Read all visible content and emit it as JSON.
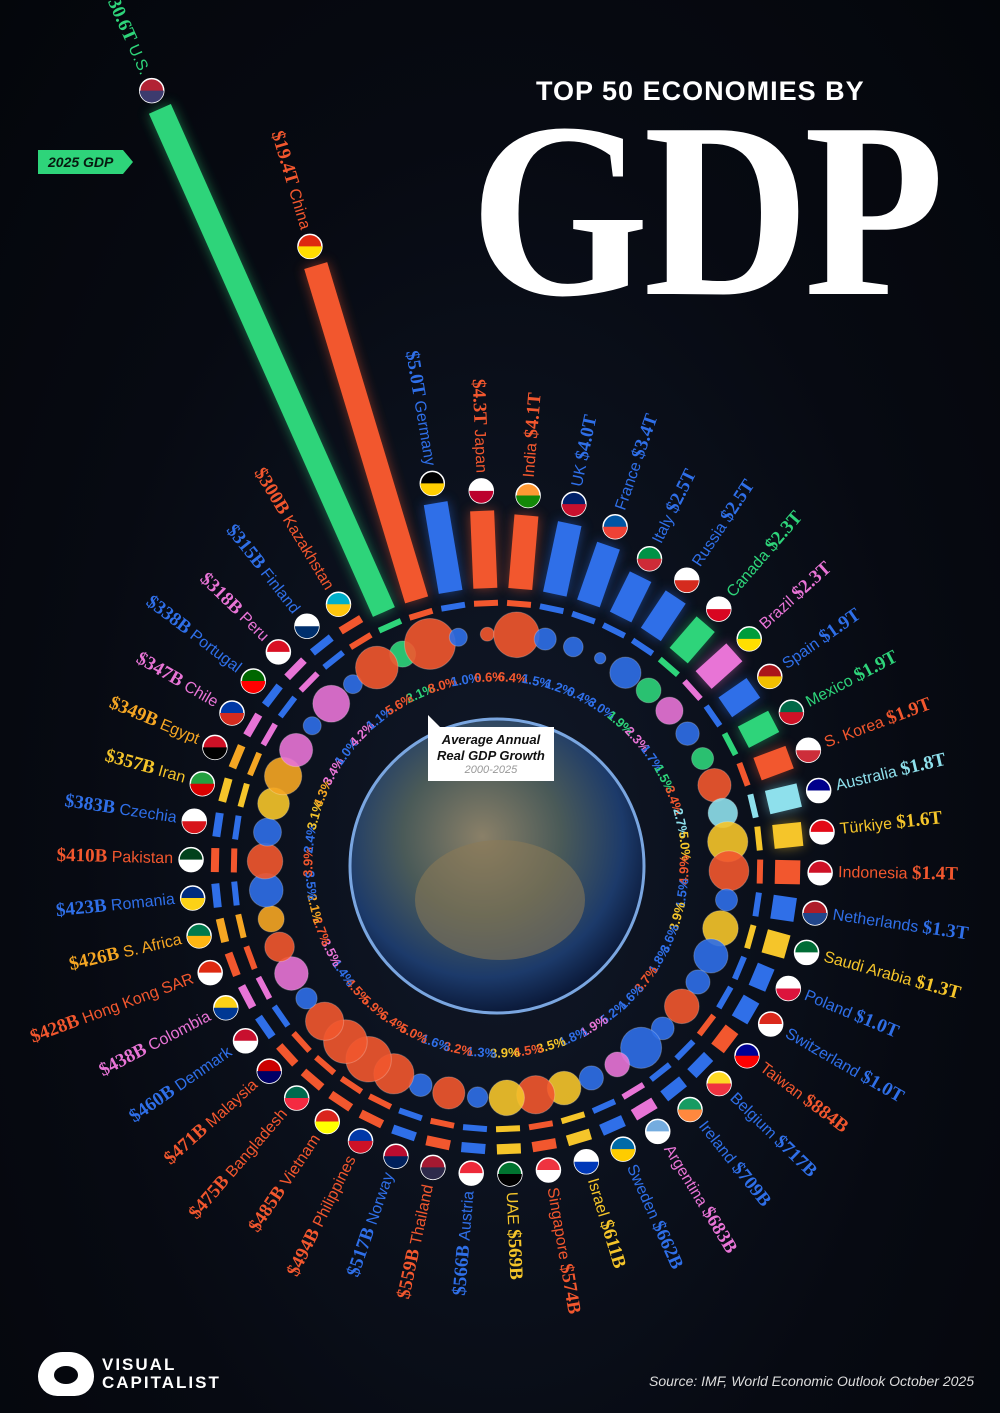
{
  "title": {
    "top": "TOP 50 ECONOMIES BY",
    "main": "GDP"
  },
  "gdp_tag": "2025 GDP",
  "callout": {
    "line1": "Average Annual",
    "line2": "Real GDP Growth",
    "period": "2000-2025"
  },
  "logo": {
    "line1": "VISUAL",
    "line2": "CAPITALIST"
  },
  "source": "Source: IMF, World Economic Outlook October 2025",
  "colors": {
    "north_america": "#2ed47a",
    "south_america": "#e874d6",
    "europe": "#2f6fe8",
    "asia": "#f2572e",
    "middle_east": "#f5c52a",
    "oceania": "#8ee0ec",
    "africa": "#f5a623"
  },
  "chart_data": {
    "type": "radial bar + bubble",
    "series": [
      {
        "name": "2025 GDP",
        "unit": "USD trillions"
      },
      {
        "name": "Average Annual Real GDP Growth 2000-2025",
        "unit": "%"
      }
    ],
    "economies": [
      {
        "name": "U.S.",
        "gdp_label": "$30.6T",
        "gdp": 30.6,
        "growth": 2.1,
        "growth_label": "2.1%",
        "region": "north_america",
        "flag": [
          "#b22234",
          "#3c3b6e"
        ]
      },
      {
        "name": "China",
        "gdp_label": "$19.4T",
        "gdp": 19.4,
        "growth": 8.0,
        "growth_label": "8.0%",
        "region": "asia",
        "flag": [
          "#de2910",
          "#ffde00"
        ]
      },
      {
        "name": "Germany",
        "gdp_label": "$5.0T",
        "gdp": 5.0,
        "growth": 1.0,
        "growth_label": "1.0%",
        "region": "europe",
        "flag": [
          "#000000",
          "#ffce00"
        ]
      },
      {
        "name": "Japan",
        "gdp_label": "$4.3T",
        "gdp": 4.3,
        "growth": 0.6,
        "growth_label": "0.6%",
        "region": "asia",
        "flag": [
          "#ffffff",
          "#bc002d"
        ]
      },
      {
        "name": "India",
        "gdp_label": "$4.1T",
        "gdp": 4.1,
        "growth": 6.4,
        "growth_label": "6.4%",
        "region": "asia",
        "flag": [
          "#ff9933",
          "#138808"
        ]
      },
      {
        "name": "UK",
        "gdp_label": "$4.0T",
        "gdp": 4.0,
        "growth": 1.5,
        "growth_label": "1.5%",
        "region": "europe",
        "flag": [
          "#012169",
          "#c8102e"
        ]
      },
      {
        "name": "France",
        "gdp_label": "$3.4T",
        "gdp": 3.4,
        "growth": 1.2,
        "growth_label": "1.2%",
        "region": "europe",
        "flag": [
          "#0055a4",
          "#ef4135"
        ]
      },
      {
        "name": "Italy",
        "gdp_label": "$2.5T",
        "gdp": 2.5,
        "growth": 0.4,
        "growth_label": "0.4%",
        "region": "europe",
        "flag": [
          "#009246",
          "#ce2b37"
        ]
      },
      {
        "name": "Russia",
        "gdp_label": "$2.5T",
        "gdp": 2.5,
        "growth": 3.0,
        "growth_label": "3.0%",
        "region": "europe",
        "flag": [
          "#ffffff",
          "#d52b1e"
        ]
      },
      {
        "name": "Canada",
        "gdp_label": "$2.3T",
        "gdp": 2.3,
        "growth": 1.9,
        "growth_label": "1.9%",
        "region": "north_america",
        "flag": [
          "#ffffff",
          "#d80621"
        ]
      },
      {
        "name": "Brazil",
        "gdp_label": "$2.3T",
        "gdp": 2.3,
        "growth": 2.3,
        "growth_label": "2.3%",
        "region": "south_america",
        "flag": [
          "#009c3b",
          "#ffdf00"
        ]
      },
      {
        "name": "Spain",
        "gdp_label": "$1.9T",
        "gdp": 1.9,
        "growth": 1.7,
        "growth_label": "1.7%",
        "region": "europe",
        "flag": [
          "#aa151b",
          "#f1bf00"
        ]
      },
      {
        "name": "Mexico",
        "gdp_label": "$1.9T",
        "gdp": 1.9,
        "growth": 1.5,
        "growth_label": "1.5%",
        "region": "north_america",
        "flag": [
          "#006847",
          "#ce1126"
        ]
      },
      {
        "name": "S. Korea",
        "gdp_label": "$1.9T",
        "gdp": 1.9,
        "growth": 3.4,
        "growth_label": "3.4%",
        "region": "asia",
        "flag": [
          "#ffffff",
          "#cd2e3a"
        ]
      },
      {
        "name": "Australia",
        "gdp_label": "$1.8T",
        "gdp": 1.8,
        "growth": 2.7,
        "growth_label": "2.7%",
        "region": "oceania",
        "flag": [
          "#00008b",
          "#ffffff"
        ]
      },
      {
        "name": "Türkiye",
        "gdp_label": "$1.6T",
        "gdp": 1.6,
        "growth": 5.0,
        "growth_label": "5.0%",
        "region": "middle_east",
        "flag": [
          "#e30a17",
          "#ffffff"
        ]
      },
      {
        "name": "Indonesia",
        "gdp_label": "$1.4T",
        "gdp": 1.4,
        "growth": 4.9,
        "growth_label": "4.9%",
        "region": "asia",
        "flag": [
          "#ce1126",
          "#ffffff"
        ]
      },
      {
        "name": "Netherlands",
        "gdp_label": "$1.3T",
        "gdp": 1.3,
        "growth": 1.5,
        "growth_label": "1.5%",
        "region": "europe",
        "flag": [
          "#ae1c28",
          "#21468b"
        ]
      },
      {
        "name": "Saudi Arabia",
        "gdp_label": "$1.3T",
        "gdp": 1.3,
        "growth": 3.9,
        "growth_label": "3.9%",
        "region": "middle_east",
        "flag": [
          "#006c35",
          "#ffffff"
        ]
      },
      {
        "name": "Poland",
        "gdp_label": "$1.0T",
        "gdp": 1.0,
        "growth": 3.6,
        "growth_label": "3.6%",
        "region": "europe",
        "flag": [
          "#ffffff",
          "#dc143c"
        ]
      },
      {
        "name": "Switzerland",
        "gdp_label": "$1.0T",
        "gdp": 1.0,
        "growth": 1.8,
        "growth_label": "1.8%",
        "region": "europe",
        "flag": [
          "#da291c",
          "#ffffff"
        ]
      },
      {
        "name": "Taiwan",
        "gdp_label": "$884B",
        "gdp": 0.884,
        "growth": 3.7,
        "growth_label": "3.7%",
        "region": "asia",
        "flag": [
          "#000095",
          "#fe0000"
        ]
      },
      {
        "name": "Belgium",
        "gdp_label": "$717B",
        "gdp": 0.717,
        "growth": 1.6,
        "growth_label": "1.6%",
        "region": "europe",
        "flag": [
          "#fdda24",
          "#ef3340"
        ]
      },
      {
        "name": "Ireland",
        "gdp_label": "$709B",
        "gdp": 0.709,
        "growth": 5.2,
        "growth_label": "5.2%",
        "region": "europe",
        "flag": [
          "#169b62",
          "#ff883e"
        ]
      },
      {
        "name": "Argentina",
        "gdp_label": "$683B",
        "gdp": 0.683,
        "growth": 1.9,
        "growth_label": "1.9%",
        "region": "south_america",
        "flag": [
          "#74acdf",
          "#ffffff"
        ]
      },
      {
        "name": "Sweden",
        "gdp_label": "$662B",
        "gdp": 0.662,
        "growth": 1.8,
        "growth_label": "1.8%",
        "region": "europe",
        "flag": [
          "#006aa7",
          "#fecc00"
        ]
      },
      {
        "name": "Israel",
        "gdp_label": "$611B",
        "gdp": 0.611,
        "growth": 3.5,
        "growth_label": "3.5%",
        "region": "middle_east",
        "flag": [
          "#ffffff",
          "#0038b8"
        ]
      },
      {
        "name": "Singapore",
        "gdp_label": "$574B",
        "gdp": 0.574,
        "growth": 4.5,
        "growth_label": "4.5%",
        "region": "asia",
        "flag": [
          "#ef3340",
          "#ffffff"
        ]
      },
      {
        "name": "UAE",
        "gdp_label": "$569B",
        "gdp": 0.569,
        "growth": 3.9,
        "growth_label": "3.9%",
        "region": "middle_east",
        "flag": [
          "#00732f",
          "#000000"
        ]
      },
      {
        "name": "Austria",
        "gdp_label": "$566B",
        "gdp": 0.566,
        "growth": 1.3,
        "growth_label": "1.3%",
        "region": "europe",
        "flag": [
          "#ed2939",
          "#ffffff"
        ]
      },
      {
        "name": "Thailand",
        "gdp_label": "$559B",
        "gdp": 0.559,
        "growth": 3.2,
        "growth_label": "3.2%",
        "region": "asia",
        "flag": [
          "#a51931",
          "#2d2a4a"
        ]
      },
      {
        "name": "Norway",
        "gdp_label": "$517B",
        "gdp": 0.517,
        "growth": 1.6,
        "growth_label": "1.6%",
        "region": "europe",
        "flag": [
          "#ba0c2f",
          "#00205b"
        ]
      },
      {
        "name": "Philippines",
        "gdp_label": "$494B",
        "gdp": 0.494,
        "growth": 5.0,
        "growth_label": "5.0%",
        "region": "asia",
        "flag": [
          "#0038a8",
          "#ce1126"
        ]
      },
      {
        "name": "Vietnam",
        "gdp_label": "$485B",
        "gdp": 0.485,
        "growth": 6.4,
        "growth_label": "6.4%",
        "region": "asia",
        "flag": [
          "#da251d",
          "#ffff00"
        ]
      },
      {
        "name": "Bangladesh",
        "gdp_label": "$475B",
        "gdp": 0.475,
        "growth": 5.9,
        "growth_label": "5.9%",
        "region": "asia",
        "flag": [
          "#006a4e",
          "#f42a41"
        ]
      },
      {
        "name": "Malaysia",
        "gdp_label": "$471B",
        "gdp": 0.471,
        "growth": 4.5,
        "growth_label": "4.5%",
        "region": "asia",
        "flag": [
          "#cc0001",
          "#010066"
        ]
      },
      {
        "name": "Denmark",
        "gdp_label": "$460B",
        "gdp": 0.46,
        "growth": 1.4,
        "growth_label": "1.4%",
        "region": "europe",
        "flag": [
          "#c8102e",
          "#ffffff"
        ]
      },
      {
        "name": "Colombia",
        "gdp_label": "$438B",
        "gdp": 0.438,
        "growth": 3.5,
        "growth_label": "3.5%",
        "region": "south_america",
        "flag": [
          "#fcd116",
          "#003893"
        ]
      },
      {
        "name": "Hong Kong SAR",
        "gdp_label": "$428B",
        "gdp": 0.428,
        "growth": 2.7,
        "growth_label": "2.7%",
        "region": "asia",
        "flag": [
          "#de2910",
          "#ffffff"
        ]
      },
      {
        "name": "S. Africa",
        "gdp_label": "$426B",
        "gdp": 0.426,
        "growth": 2.1,
        "growth_label": "2.1%",
        "region": "africa",
        "flag": [
          "#007a4d",
          "#ffb612"
        ]
      },
      {
        "name": "Romania",
        "gdp_label": "$423B",
        "gdp": 0.423,
        "growth": 3.5,
        "growth_label": "3.5%",
        "region": "europe",
        "flag": [
          "#002b7f",
          "#fcd116"
        ]
      },
      {
        "name": "Pakistan",
        "gdp_label": "$410B",
        "gdp": 0.41,
        "growth": 3.9,
        "growth_label": "3.9%",
        "region": "asia",
        "flag": [
          "#01411c",
          "#ffffff"
        ]
      },
      {
        "name": "Czechia",
        "gdp_label": "$383B",
        "gdp": 0.383,
        "growth": 2.4,
        "growth_label": "2.4%",
        "region": "europe",
        "flag": [
          "#ffffff",
          "#d7141a"
        ]
      },
      {
        "name": "Iran",
        "gdp_label": "$357B",
        "gdp": 0.357,
        "growth": 3.1,
        "growth_label": "3.1%",
        "region": "middle_east",
        "flag": [
          "#239f40",
          "#da0000"
        ]
      },
      {
        "name": "Egypt",
        "gdp_label": "$349B",
        "gdp": 0.349,
        "growth": 4.3,
        "growth_label": "4.3%",
        "region": "africa",
        "flag": [
          "#ce1126",
          "#000000"
        ]
      },
      {
        "name": "Chile",
        "gdp_label": "$347B",
        "gdp": 0.347,
        "growth": 3.4,
        "growth_label": "3.4%",
        "region": "south_america",
        "flag": [
          "#0039a6",
          "#d52b1e"
        ]
      },
      {
        "name": "Portugal",
        "gdp_label": "$338B",
        "gdp": 0.338,
        "growth": 1.0,
        "growth_label": "1.0%",
        "region": "europe",
        "flag": [
          "#006600",
          "#ff0000"
        ]
      },
      {
        "name": "Peru",
        "gdp_label": "$318B",
        "gdp": 0.318,
        "growth": 4.2,
        "growth_label": "4.2%",
        "region": "south_america",
        "flag": [
          "#d91023",
          "#ffffff"
        ]
      },
      {
        "name": "Finland",
        "gdp_label": "$315B",
        "gdp": 0.315,
        "growth": 1.1,
        "growth_label": "1.1%",
        "region": "europe",
        "flag": [
          "#ffffff",
          "#002f6c"
        ]
      },
      {
        "name": "Kazakhstan",
        "gdp_label": "$300B",
        "gdp": 0.3,
        "growth": 5.6,
        "growth_label": "5.6%",
        "region": "asia",
        "flag": [
          "#00afca",
          "#fec50c"
        ]
      }
    ]
  }
}
